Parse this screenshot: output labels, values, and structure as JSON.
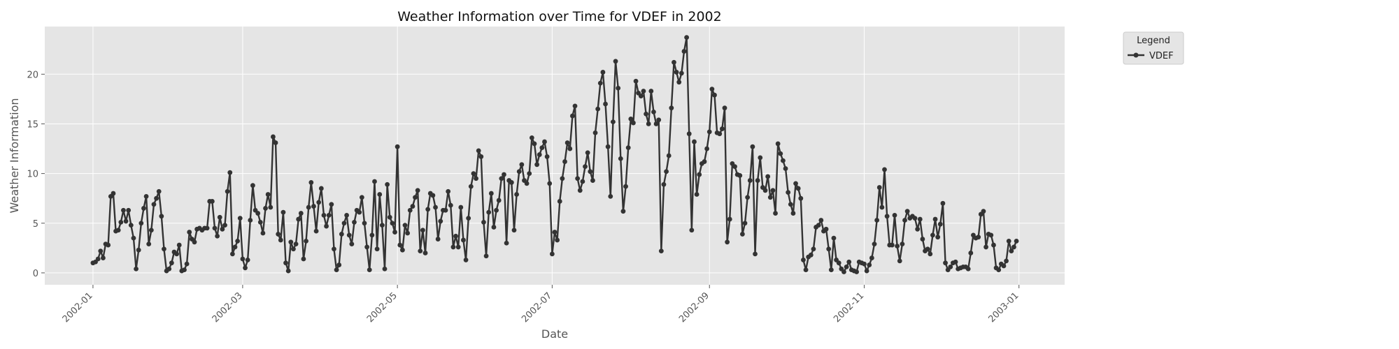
{
  "chart_data": {
    "type": "line",
    "title": "Weather Information over Time for VDEF in 2002",
    "xlabel": "Date",
    "ylabel": "Weather Information",
    "x_start": "2002-01-01",
    "x_end": "2002-12-31",
    "xlim": [
      "2001-12-13",
      "2003-01-19"
    ],
    "ylim": [
      -1.2,
      24.8
    ],
    "x_ticks": [
      {
        "date": "2002-01-01",
        "label": "2002-01"
      },
      {
        "date": "2002-03-01",
        "label": "2002-03"
      },
      {
        "date": "2002-05-01",
        "label": "2002-05"
      },
      {
        "date": "2002-07-01",
        "label": "2002-07"
      },
      {
        "date": "2002-09-01",
        "label": "2002-09"
      },
      {
        "date": "2002-11-01",
        "label": "2002-11"
      },
      {
        "date": "2003-01-01",
        "label": "2003-01"
      }
    ],
    "y_ticks": [
      0,
      5,
      10,
      15,
      20
    ],
    "grid": true,
    "legend": {
      "title": "Legend",
      "placement": "outside-top-right"
    },
    "series": [
      {
        "name": "VDEF",
        "color": "#333333",
        "values": [
          1.0,
          1.1,
          1.4,
          2.2,
          1.5,
          2.9,
          2.8,
          7.7,
          8.0,
          4.2,
          4.3,
          5.1,
          6.3,
          5.2,
          6.3,
          4.8,
          3.5,
          0.4,
          2.3,
          5.0,
          6.5,
          7.7,
          2.9,
          4.3,
          6.9,
          7.5,
          8.2,
          5.7,
          2.4,
          0.2,
          0.4,
          1.0,
          2.1,
          1.9,
          2.8,
          0.2,
          0.3,
          0.9,
          4.1,
          3.4,
          3.1,
          4.4,
          4.5,
          4.3,
          4.5,
          4.5,
          7.2,
          7.2,
          4.5,
          3.7,
          5.6,
          4.4,
          4.8,
          8.2,
          10.1,
          1.9,
          2.6,
          3.2,
          5.5,
          1.4,
          0.5,
          1.3,
          5.3,
          8.8,
          6.3,
          6.0,
          5.1,
          4.0,
          6.5,
          7.9,
          6.6,
          13.7,
          13.1,
          3.9,
          3.3,
          6.1,
          1.0,
          0.2,
          3.1,
          2.4,
          2.9,
          5.4,
          6.0,
          1.4,
          3.2,
          6.6,
          9.1,
          6.7,
          4.2,
          7.1,
          8.5,
          5.8,
          4.7,
          5.8,
          6.9,
          2.4,
          0.3,
          0.8,
          3.9,
          5.0,
          5.8,
          3.8,
          2.9,
          5.1,
          6.3,
          6.1,
          7.6,
          5.0,
          2.6,
          0.3,
          3.8,
          9.2,
          2.4,
          7.9,
          4.8,
          0.4,
          8.9,
          5.6,
          5.0,
          4.1,
          12.7,
          2.8,
          2.3,
          4.8,
          4.0,
          6.3,
          6.7,
          7.6,
          8.3,
          2.2,
          4.3,
          2.0,
          6.4,
          8.0,
          7.8,
          6.6,
          3.4,
          5.2,
          6.3,
          6.3,
          8.2,
          6.8,
          2.6,
          3.7,
          2.6,
          6.6,
          3.3,
          1.3,
          5.5,
          8.7,
          10.0,
          9.5,
          12.3,
          11.7,
          5.1,
          1.7,
          6.1,
          8.0,
          4.6,
          6.3,
          7.3,
          9.5,
          9.9,
          3.0,
          9.3,
          9.1,
          4.3,
          7.9,
          10.2,
          10.9,
          9.3,
          9.0,
          10.0,
          13.6,
          13.0,
          10.9,
          11.9,
          12.6,
          13.2,
          11.7,
          9.0,
          1.9,
          4.1,
          3.3,
          7.2,
          9.5,
          11.2,
          13.1,
          12.5,
          15.8,
          16.8,
          9.5,
          8.3,
          9.2,
          10.7,
          12.1,
          10.2,
          9.3,
          14.1,
          16.5,
          19.1,
          20.2,
          17.0,
          12.7,
          7.7,
          15.2,
          21.3,
          18.6,
          11.5,
          6.2,
          8.7,
          12.6,
          15.5,
          15.1,
          19.3,
          18.1,
          17.8,
          18.3,
          16.0,
          15.0,
          18.3,
          16.2,
          15.0,
          15.4,
          2.2,
          8.9,
          10.2,
          11.8,
          16.6,
          21.2,
          20.2,
          19.2,
          20.1,
          22.3,
          23.7,
          14.0,
          4.3,
          13.2,
          7.9,
          9.9,
          11.0,
          11.2,
          12.5,
          14.2,
          18.5,
          17.9,
          14.1,
          14.0,
          14.5,
          16.6,
          3.1,
          5.4,
          11.0,
          10.7,
          9.9,
          9.8,
          3.9,
          5.0,
          7.6,
          9.3,
          12.7,
          1.9,
          9.3,
          11.6,
          8.6,
          8.3,
          9.7,
          7.6,
          8.3,
          6.0,
          13.0,
          12.0,
          11.3,
          10.5,
          8.1,
          6.9,
          6.0,
          9.0,
          8.5,
          7.5,
          1.3,
          0.3,
          1.6,
          1.8,
          2.4,
          4.6,
          4.8,
          5.3,
          4.2,
          4.4,
          2.4,
          0.3,
          3.5,
          1.3,
          1.0,
          0.4,
          0.1,
          0.6,
          1.1,
          0.3,
          0.2,
          0.1,
          1.1,
          1.0,
          0.9,
          0.2,
          0.8,
          1.5,
          2.9,
          5.3,
          8.6,
          6.6,
          10.4,
          5.7,
          2.8,
          2.8,
          5.8,
          2.7,
          1.2,
          2.9,
          5.3,
          6.2,
          5.5,
          5.7,
          5.5,
          4.4,
          5.4,
          3.4,
          2.2,
          2.4,
          1.9,
          3.8,
          5.4,
          3.6,
          4.9,
          7.0,
          1.0,
          0.3,
          0.6,
          1.0,
          1.1,
          0.4,
          0.5,
          0.6,
          0.6,
          0.4,
          2.0,
          3.8,
          3.5,
          3.6,
          5.9,
          6.2,
          2.6,
          3.9,
          3.8,
          2.8,
          0.5,
          0.3,
          0.9,
          0.7,
          1.2,
          3.2,
          2.2,
          2.6,
          3.2
        ]
      }
    ]
  }
}
